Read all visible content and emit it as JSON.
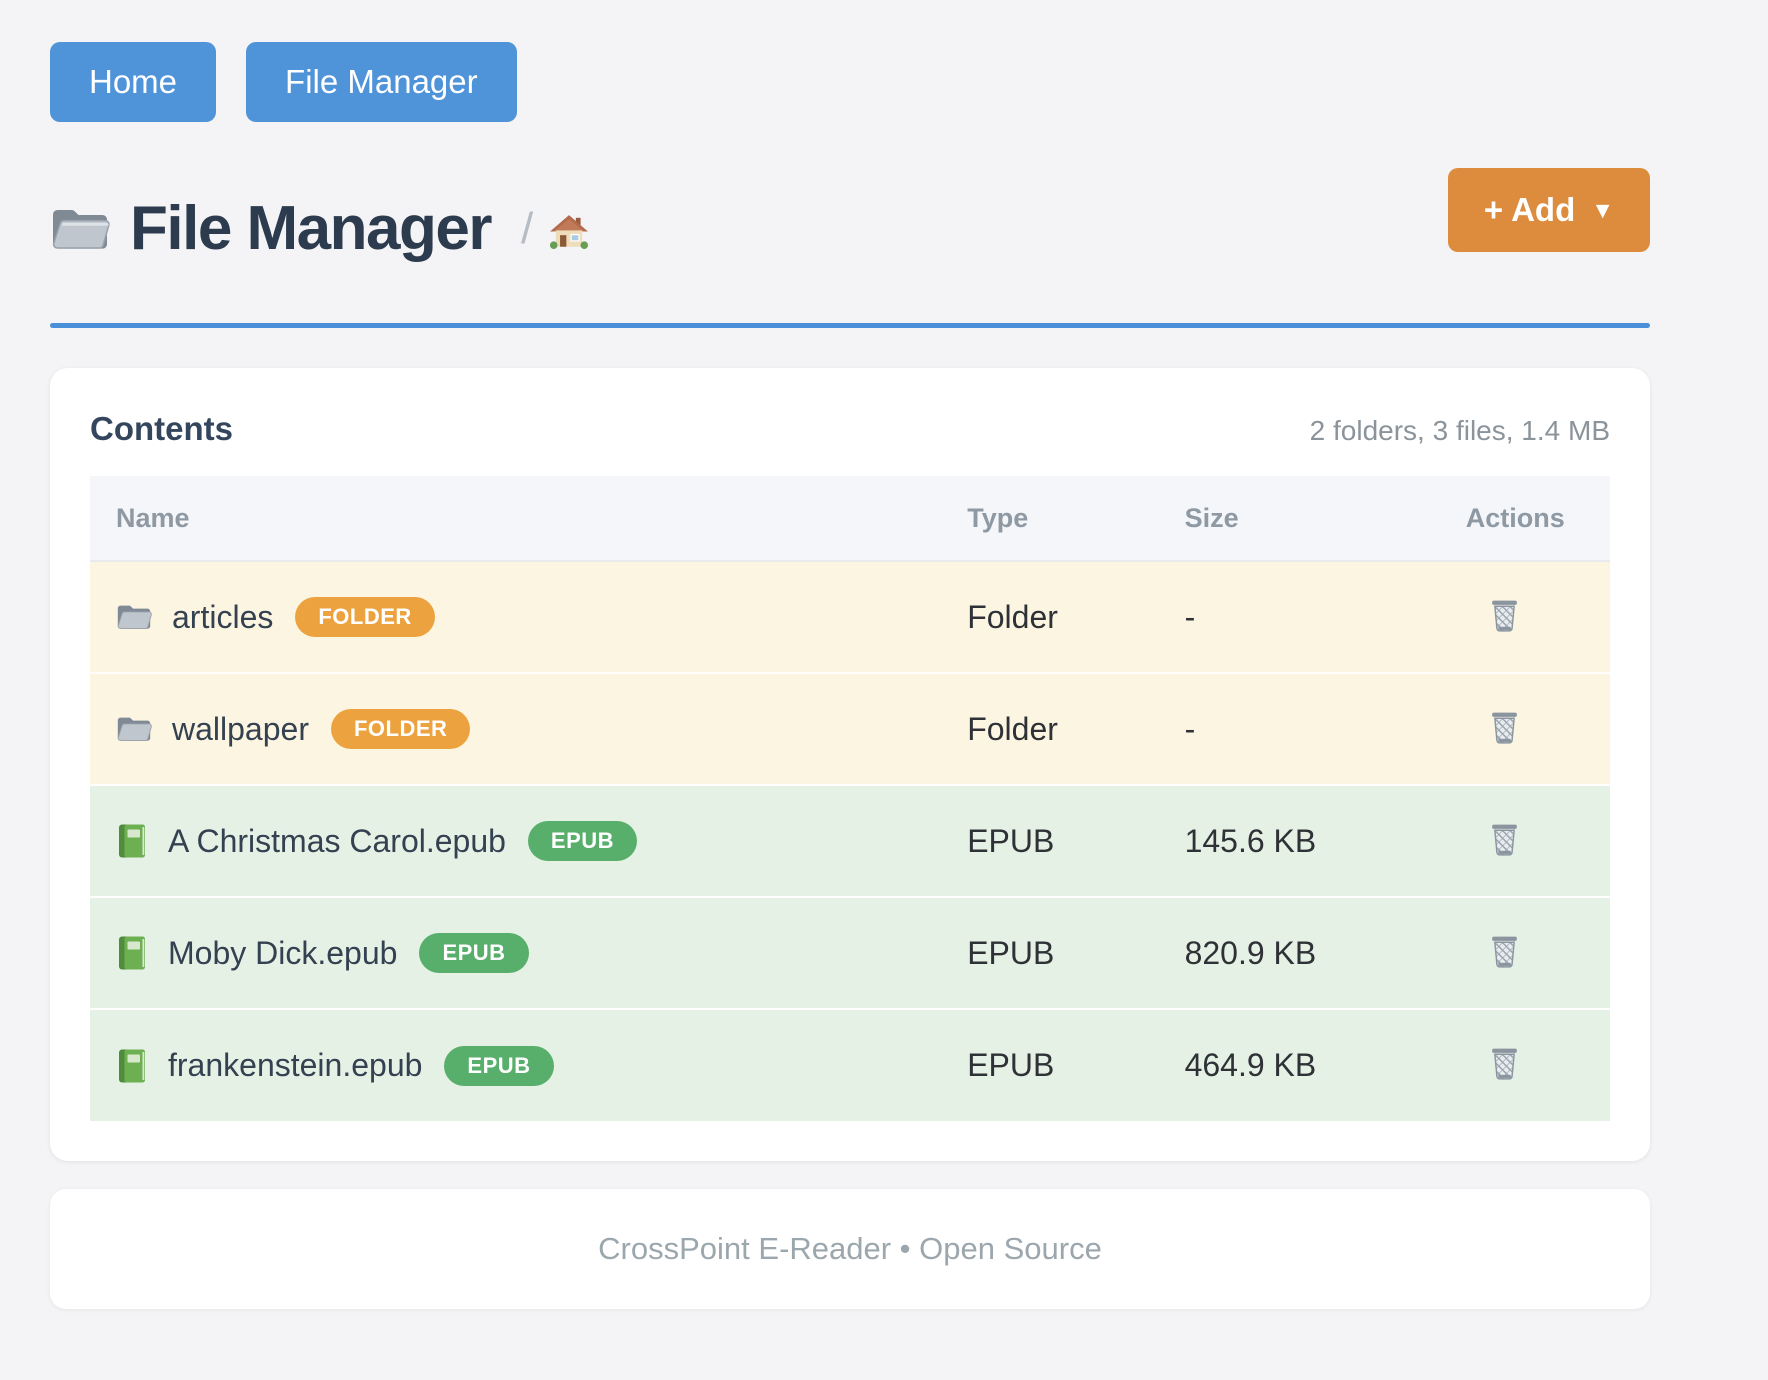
{
  "nav": {
    "buttons": [
      {
        "label": "Home"
      },
      {
        "label": "File Manager"
      }
    ]
  },
  "header": {
    "title": "File Manager",
    "breadcrumb_separator": "/",
    "breadcrumb_home_icon": "house-icon",
    "title_icon": "folder-icon",
    "add_button_label": "+ Add",
    "add_button_caret": "▼"
  },
  "contents": {
    "heading": "Contents",
    "summary": "2 folders, 3 files, 1.4 MB",
    "columns": [
      "Name",
      "Type",
      "Size",
      "Actions"
    ],
    "rows": [
      {
        "name": "articles",
        "kind": "folder",
        "icon": "folder-icon",
        "badge": "FOLDER",
        "type": "Folder",
        "size": "-"
      },
      {
        "name": "wallpaper",
        "kind": "folder",
        "icon": "folder-icon",
        "badge": "FOLDER",
        "type": "Folder",
        "size": "-"
      },
      {
        "name": "A Christmas Carol.epub",
        "kind": "epub",
        "icon": "book-icon",
        "badge": "EPUB",
        "type": "EPUB",
        "size": "145.6 KB"
      },
      {
        "name": "Moby Dick.epub",
        "kind": "epub",
        "icon": "book-icon",
        "badge": "EPUB",
        "type": "EPUB",
        "size": "820.9 KB"
      },
      {
        "name": "frankenstein.epub",
        "kind": "epub",
        "icon": "book-icon",
        "badge": "EPUB",
        "type": "EPUB",
        "size": "464.9 KB"
      }
    ],
    "actions": {
      "delete_icon": "trash-icon"
    }
  },
  "footer": {
    "text": "CrossPoint E-Reader • Open Source"
  },
  "colors": {
    "blue": "#4f93d8",
    "divider-blue": "#4a90d9",
    "orange": "#dd8c3e",
    "badge-folder": "#eca33f",
    "badge-epub": "#58ae6b",
    "row-folder-bg": "#fcf5e1",
    "row-epub-bg": "#e6f1e6",
    "page-bg": "#f4f4f6"
  }
}
